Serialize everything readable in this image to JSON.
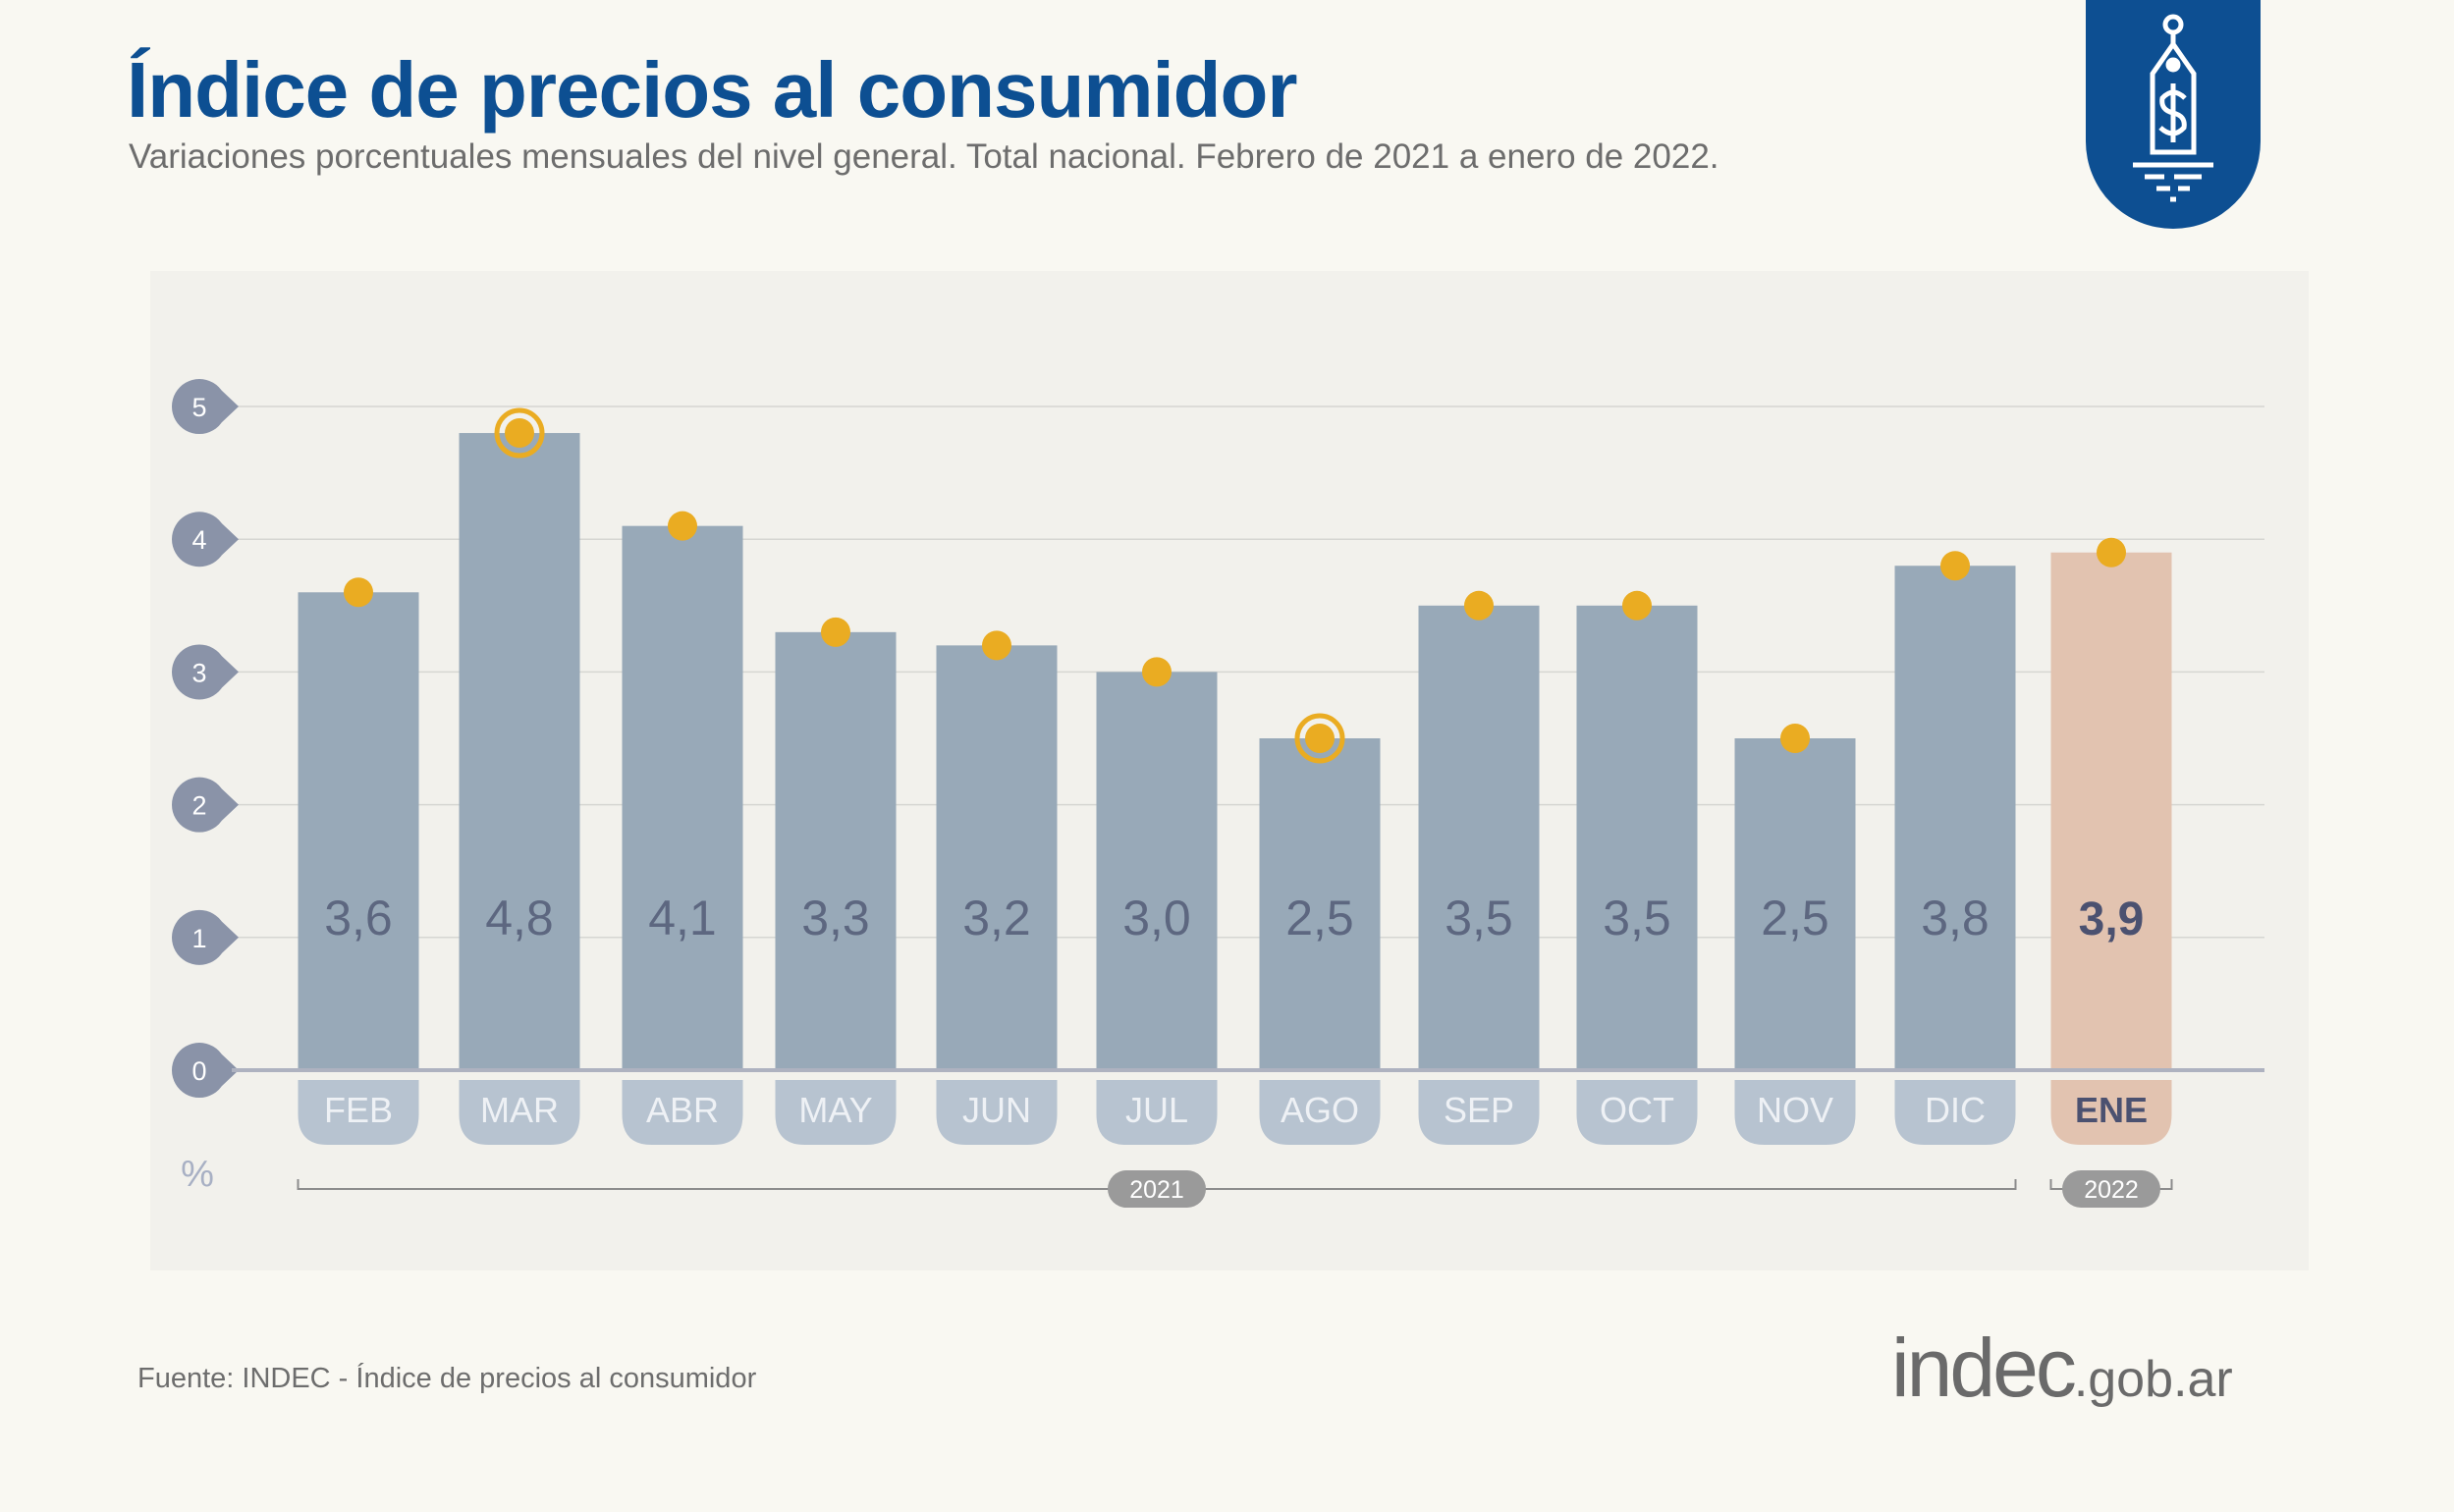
{
  "header": {
    "title": "Índice de precios al consumidor",
    "subtitle": "Variaciones porcentuales mensuales del nivel general. Total nacional. Febrero de 2021 a enero de 2022.",
    "badge_icon": "price-tag-dollar-icon"
  },
  "chart_data": {
    "type": "bar",
    "categories": [
      "FEB",
      "MAR",
      "ABR",
      "MAY",
      "JUN",
      "JUL",
      "AGO",
      "SEP",
      "OCT",
      "NOV",
      "DIC",
      "ENE"
    ],
    "values": [
      3.6,
      4.8,
      4.1,
      3.3,
      3.2,
      3.0,
      2.5,
      3.5,
      3.5,
      2.5,
      3.8,
      3.9
    ],
    "data_labels": [
      "3,6",
      "4,8",
      "4,1",
      "3,3",
      "3,2",
      "3,0",
      "2,5",
      "3,5",
      "3,5",
      "2,5",
      "3,8",
      "3,9"
    ],
    "highlighted_markers": [
      "MAR",
      "AGO"
    ],
    "highlighted_category": "ENE",
    "ylim": [
      0,
      5
    ],
    "yticks": [
      "0",
      "1",
      "2",
      "3",
      "4",
      "5"
    ],
    "ylabel": "%",
    "year_groups": [
      {
        "label": "2021",
        "from": "FEB",
        "to": "DIC"
      },
      {
        "label": "2022",
        "from": "ENE",
        "to": "ENE"
      }
    ],
    "grid": true,
    "colors": {
      "bar": "#98a9b8",
      "bar_highlight": "#e2c3b0",
      "marker": "#eaac22",
      "label": "#5d6780",
      "label_highlight": "#4b5170",
      "tick_bubble": "#8a93a8",
      "month_pill": "#b7c3d0",
      "year_pill": "#9a9a9a"
    }
  },
  "footer": {
    "source": "Fuente: INDEC - Índice de precios al consumidor",
    "logo_main": "indec",
    "logo_domain": ".gob.ar"
  }
}
